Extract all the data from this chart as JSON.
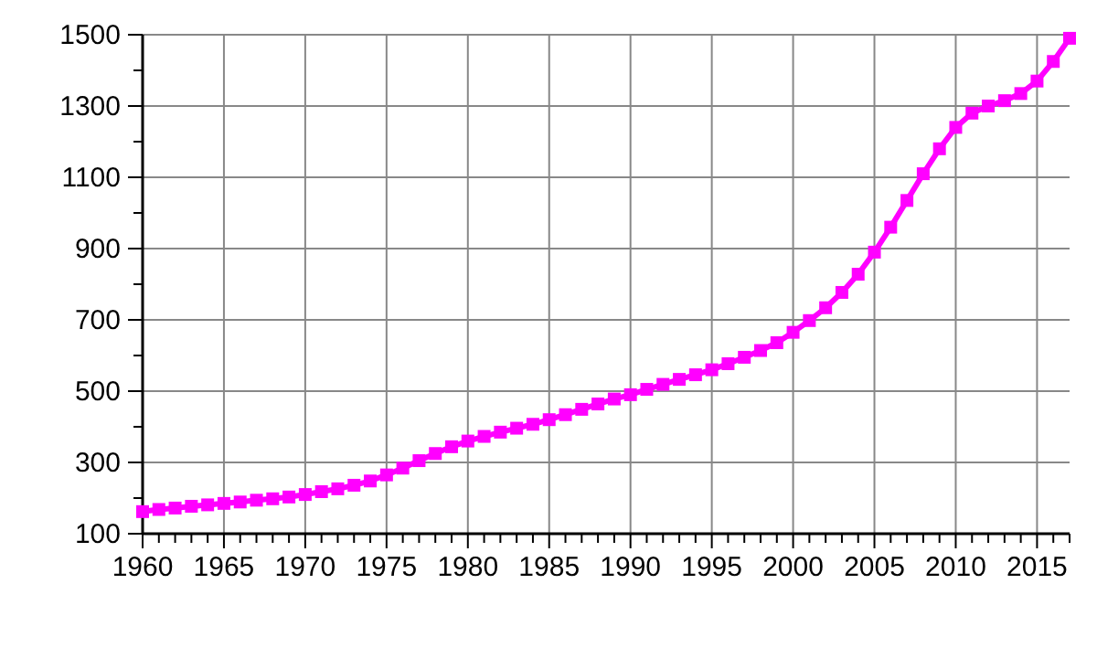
{
  "chart_data": {
    "type": "line",
    "x": [
      1960,
      1961,
      1962,
      1963,
      1964,
      1965,
      1966,
      1967,
      1968,
      1969,
      1970,
      1971,
      1972,
      1973,
      1974,
      1975,
      1976,
      1977,
      1978,
      1979,
      1980,
      1981,
      1982,
      1983,
      1984,
      1985,
      1986,
      1987,
      1988,
      1989,
      1990,
      1991,
      1992,
      1993,
      1994,
      1995,
      1996,
      1997,
      1998,
      1999,
      2000,
      2001,
      2002,
      2003,
      2004,
      2005,
      2006,
      2007,
      2008,
      2009,
      2010,
      2011,
      2012,
      2013,
      2014,
      2015,
      2016,
      2017
    ],
    "series": [
      {
        "color": "#ff00ff",
        "values": [
          162,
          168,
          172,
          177,
          181,
          185,
          189,
          194,
          198,
          203,
          210,
          218,
          226,
          236,
          248,
          265,
          284,
          305,
          325,
          344,
          360,
          373,
          385,
          396,
          407,
          420,
          434,
          449,
          464,
          478,
          490,
          505,
          519,
          533,
          546,
          560,
          577,
          595,
          614,
          636,
          665,
          698,
          734,
          777,
          828,
          890,
          960,
          1035,
          1110,
          1180,
          1240,
          1280,
          1300,
          1315,
          1335,
          1370,
          1425,
          1490
        ]
      }
    ],
    "xlim": [
      1960,
      2017
    ],
    "xticks": [
      1960,
      {
        "value": 1961,
        "label": null
      },
      {
        "value": 1962,
        "label": null
      },
      {
        "value": 1963,
        "label": null
      },
      {
        "value": 1964,
        "label": null
      },
      1965,
      {
        "value": 1966,
        "label": null
      },
      {
        "value": 1967,
        "label": null
      },
      {
        "value": 1968,
        "label": null
      },
      {
        "value": 1969,
        "label": null
      },
      1970,
      {
        "value": 1971,
        "label": null
      },
      {
        "value": 1972,
        "label": null
      },
      {
        "value": 1973,
        "label": null
      },
      {
        "value": 1974,
        "label": null
      },
      1975,
      {
        "value": 1976,
        "label": null
      },
      {
        "value": 1977,
        "label": null
      },
      {
        "value": 1978,
        "label": null
      },
      {
        "value": 1979,
        "label": null
      },
      1980,
      {
        "value": 1981,
        "label": null
      },
      {
        "value": 1982,
        "label": null
      },
      {
        "value": 1983,
        "label": null
      },
      {
        "value": 1984,
        "label": null
      },
      1985,
      {
        "value": 1986,
        "label": null
      },
      {
        "value": 1987,
        "label": null
      },
      {
        "value": 1988,
        "label": null
      },
      {
        "value": 1989,
        "label": null
      },
      1990,
      {
        "value": 1991,
        "label": null
      },
      {
        "value": 1992,
        "label": null
      },
      {
        "value": 1993,
        "label": null
      },
      {
        "value": 1994,
        "label": null
      },
      1995,
      {
        "value": 1996,
        "label": null
      },
      {
        "value": 1997,
        "label": null
      },
      {
        "value": 1998,
        "label": null
      },
      {
        "value": 1999,
        "label": null
      },
      2000,
      {
        "value": 2001,
        "label": null
      },
      {
        "value": 2002,
        "label": null
      },
      {
        "value": 2003,
        "label": null
      },
      {
        "value": 2004,
        "label": null
      },
      2005,
      {
        "value": 2006,
        "label": null
      },
      {
        "value": 2007,
        "label": null
      },
      {
        "value": 2008,
        "label": null
      },
      {
        "value": 2009,
        "label": null
      },
      2010,
      {
        "value": 2011,
        "label": null
      },
      {
        "value": 2012,
        "label": null
      },
      {
        "value": 2013,
        "label": null
      },
      {
        "value": 2014,
        "label": null
      },
      2015,
      {
        "value": 2016,
        "label": null
      },
      {
        "value": 2017,
        "label": null
      }
    ],
    "ylim": [
      100,
      1500
    ],
    "yticks": [
      100,
      {
        "value": 200,
        "label": null
      },
      300,
      {
        "value": 400,
        "label": null
      },
      500,
      {
        "value": 600,
        "label": null
      },
      700,
      {
        "value": 800,
        "label": null
      },
      900,
      {
        "value": 1000,
        "label": null
      },
      1100,
      {
        "value": 1200,
        "label": null
      },
      1300,
      {
        "value": 1400,
        "label": null
      },
      1500
    ],
    "grid": true,
    "marker": "square",
    "line_style": "solid"
  }
}
